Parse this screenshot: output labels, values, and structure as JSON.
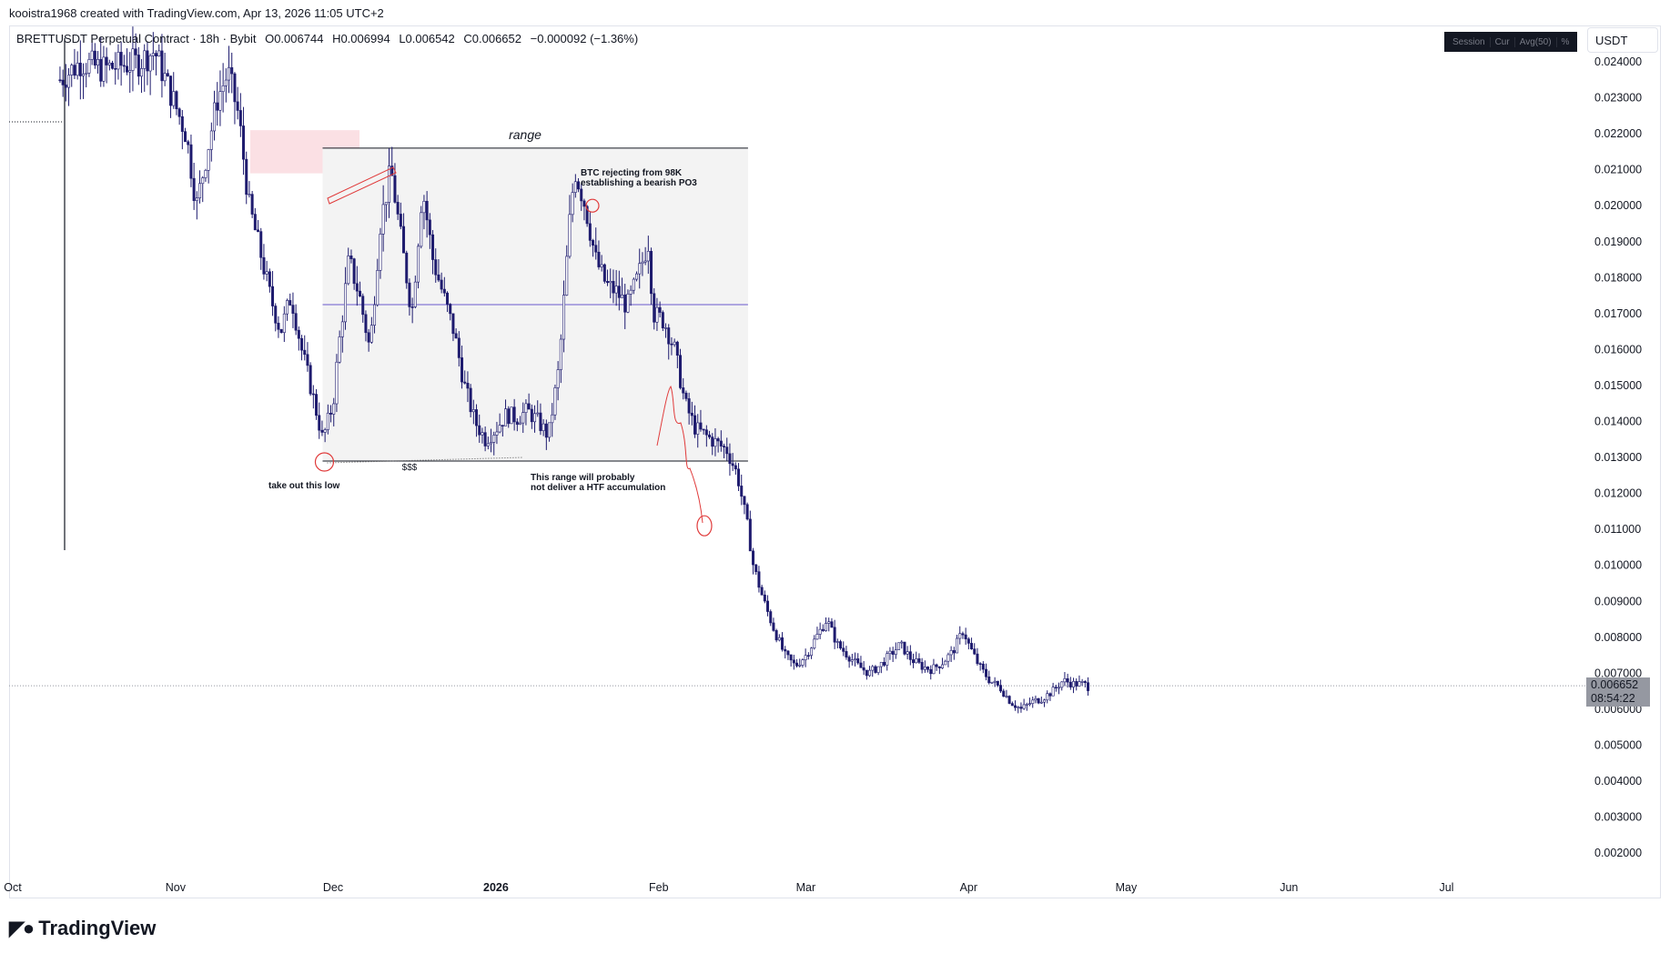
{
  "header": {
    "created_by": "kooistra1968 created with TradingView.com, Apr 13, 2026 11:05 UTC+2"
  },
  "legend": {
    "symbol": "BRETTUSDT Perpetual Contract · 18h · Bybit",
    "open": "O0.006744",
    "high": "H0.006994",
    "low": "L0.006542",
    "close": "C0.006652",
    "change": "−0.000092 (−1.36%)"
  },
  "toolbar": {
    "items": [
      "Session",
      "Cur",
      "Avg(50)",
      "%"
    ],
    "currency": "USDT"
  },
  "price_tag": {
    "price": "0.006652",
    "countdown": "08:54:22"
  },
  "colors": {
    "candle": "#1e1b6e",
    "range_box": "#f3f3f3",
    "midline": "#6a5acd",
    "annotation_red": "#e03a3a",
    "supply_zone": "#fbe0e4"
  },
  "brand": {
    "name": "TradingView",
    "icon": "tradingview-logo-icon"
  },
  "chart_data": {
    "type": "candlestick",
    "symbol": "BRETTUSDT",
    "timeframe": "18h",
    "ylim": [
      0.0015,
      0.0245
    ],
    "y_ticks": [
      "0.024000",
      "0.023000",
      "0.022000",
      "0.021000",
      "0.020000",
      "0.019000",
      "0.018000",
      "0.017000",
      "0.016000",
      "0.015000",
      "0.014000",
      "0.013000",
      "0.012000",
      "0.011000",
      "0.010000",
      "0.009000",
      "0.008000",
      "0.007000",
      "0.006000",
      "0.005000",
      "0.004000",
      "0.003000",
      "0.002000"
    ],
    "x_labels": [
      {
        "label": "Oct",
        "date": "2025-10-01"
      },
      {
        "label": "Nov",
        "date": "2025-11-01"
      },
      {
        "label": "Dec",
        "date": "2025-12-01"
      },
      {
        "label": "2026",
        "date": "2026-01-01",
        "bold": true
      },
      {
        "label": "Feb",
        "date": "2026-02-01"
      },
      {
        "label": "Mar",
        "date": "2026-03-01"
      },
      {
        "label": "Apr",
        "date": "2026-04-01"
      },
      {
        "label": "May",
        "date": "2026-05-01"
      },
      {
        "label": "Jun",
        "date": "2026-06-01"
      },
      {
        "label": "Jul",
        "date": "2026-07-01"
      }
    ],
    "x_range": [
      "2025-10-01",
      "2026-07-16"
    ],
    "price_path": [
      [
        "2025-10-10",
        0.0235
      ],
      [
        "2025-10-14",
        0.024
      ],
      [
        "2025-10-18",
        0.0238
      ],
      [
        "2025-10-25",
        0.024
      ],
      [
        "2025-10-28",
        0.0243
      ],
      [
        "2025-11-03",
        0.022
      ],
      [
        "2025-11-05",
        0.02
      ],
      [
        "2025-11-07",
        0.0215
      ],
      [
        "2025-11-09",
        0.023
      ],
      [
        "2025-11-11",
        0.0237
      ],
      [
        "2025-11-13",
        0.0225
      ],
      [
        "2025-11-15",
        0.02
      ],
      [
        "2025-11-17",
        0.0188
      ],
      [
        "2025-11-19",
        0.0175
      ],
      [
        "2025-11-21",
        0.0165
      ],
      [
        "2025-11-23",
        0.0175
      ],
      [
        "2025-11-25",
        0.016
      ],
      [
        "2025-11-27",
        0.0148
      ],
      [
        "2025-11-29",
        0.0135
      ],
      [
        "2025-12-01",
        0.0145
      ],
      [
        "2025-12-02",
        0.016
      ],
      [
        "2025-12-04",
        0.0185
      ],
      [
        "2025-12-06",
        0.0175
      ],
      [
        "2025-12-08",
        0.016
      ],
      [
        "2025-12-10",
        0.0195
      ],
      [
        "2025-12-12",
        0.021
      ],
      [
        "2025-12-14",
        0.019
      ],
      [
        "2025-12-16",
        0.017
      ],
      [
        "2025-12-18",
        0.0205
      ],
      [
        "2025-12-20",
        0.0185
      ],
      [
        "2025-12-22",
        0.0175
      ],
      [
        "2025-12-24",
        0.0165
      ],
      [
        "2025-12-26",
        0.015
      ],
      [
        "2025-12-28",
        0.014
      ],
      [
        "2025-12-30",
        0.0135
      ],
      [
        "2026-01-01",
        0.0138
      ],
      [
        "2026-01-03",
        0.0142
      ],
      [
        "2026-01-05",
        0.0141
      ],
      [
        "2026-01-07",
        0.0143
      ],
      [
        "2026-01-09",
        0.014
      ],
      [
        "2026-01-11",
        0.0136
      ],
      [
        "2026-01-13",
        0.0155
      ],
      [
        "2026-01-14",
        0.0175
      ],
      [
        "2026-01-15",
        0.0195
      ],
      [
        "2026-01-16",
        0.021
      ],
      [
        "2026-01-18",
        0.02
      ],
      [
        "2026-01-20",
        0.0185
      ],
      [
        "2026-01-22",
        0.0178
      ],
      [
        "2026-01-24",
        0.0176
      ],
      [
        "2026-01-26",
        0.0172
      ],
      [
        "2026-01-28",
        0.018
      ],
      [
        "2026-01-30",
        0.019
      ],
      [
        "2026-01-31",
        0.017
      ],
      [
        "2026-02-02",
        0.0168
      ],
      [
        "2026-02-04",
        0.016
      ],
      [
        "2026-02-06",
        0.0145
      ],
      [
        "2026-02-08",
        0.0138
      ],
      [
        "2026-02-10",
        0.0136
      ],
      [
        "2026-02-12",
        0.0134
      ],
      [
        "2026-02-14",
        0.0132
      ],
      [
        "2026-02-16",
        0.0125
      ],
      [
        "2026-02-18",
        0.011
      ],
      [
        "2026-02-19",
        0.01
      ],
      [
        "2026-02-21",
        0.009
      ],
      [
        "2026-02-23",
        0.0082
      ],
      [
        "2026-02-25",
        0.0075
      ],
      [
        "2026-02-27",
        0.0072
      ],
      [
        "2026-03-01",
        0.0075
      ],
      [
        "2026-03-03",
        0.008
      ],
      [
        "2026-03-05",
        0.0085
      ],
      [
        "2026-03-07",
        0.0078
      ],
      [
        "2026-03-09",
        0.0075
      ],
      [
        "2026-03-11",
        0.0072
      ],
      [
        "2026-03-13",
        0.007
      ],
      [
        "2026-03-15",
        0.0072
      ],
      [
        "2026-03-17",
        0.0075
      ],
      [
        "2026-03-19",
        0.0078
      ],
      [
        "2026-03-21",
        0.0074
      ],
      [
        "2026-03-23",
        0.0072
      ],
      [
        "2026-03-25",
        0.0071
      ],
      [
        "2026-03-27",
        0.0073
      ],
      [
        "2026-03-29",
        0.0076
      ],
      [
        "2026-03-31",
        0.0082
      ],
      [
        "2026-04-01",
        0.0078
      ],
      [
        "2026-04-03",
        0.0072
      ],
      [
        "2026-04-05",
        0.0068
      ],
      [
        "2026-04-07",
        0.0066
      ],
      [
        "2026-04-09",
        0.0062
      ],
      [
        "2026-04-11",
        0.006
      ],
      [
        "2026-04-13",
        0.0062
      ],
      [
        "2026-04-15",
        0.0063
      ],
      [
        "2026-04-17",
        0.0065
      ],
      [
        "2026-04-19",
        0.0068
      ],
      [
        "2026-04-21",
        0.0067
      ],
      [
        "2026-04-23",
        0.0067
      ],
      [
        "2026-04-24",
        0.0066
      ]
    ],
    "current_price": 0.006652,
    "annotations": {
      "range_label": "range",
      "range_high": 0.0216,
      "range_low": 0.0129,
      "range_mid": 0.01725,
      "range_start": "2025-11-29",
      "range_end": "2026-02-18",
      "liquidity_label": "$$$",
      "low_note": "take out this low",
      "btc_note_line1": "BTC rejecting from 98K",
      "btc_note_line2": "establishing a bearish PO3",
      "htf_note_line1": "This range will probably",
      "htf_note_line2": "not deliver a HTF accumulation"
    }
  }
}
